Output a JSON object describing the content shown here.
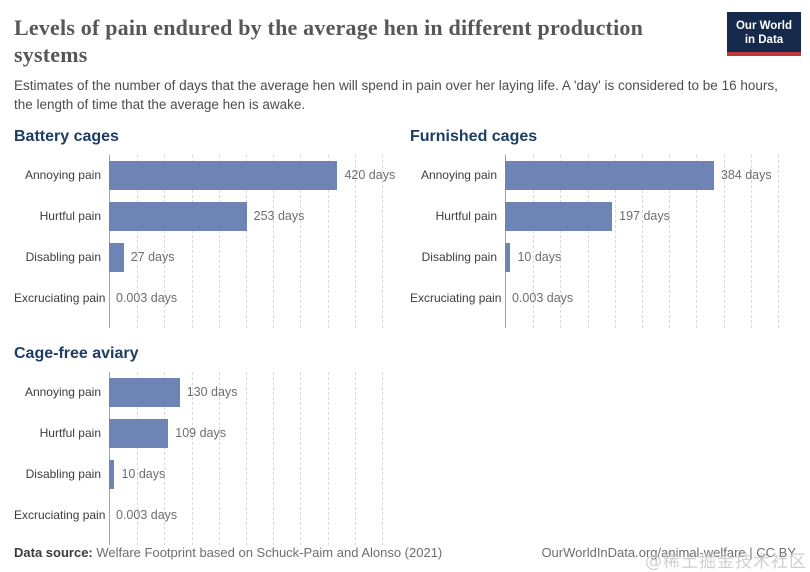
{
  "header": {
    "title": "Levels of pain endured by the average hen in different production systems",
    "subtitle": "Estimates of the number of days that the average hen will spend in pain over her laying life. A 'day' is considered to be 16 hours, the length of time that the average hen is awake.",
    "logo_line1": "Our World",
    "logo_line2": "in Data"
  },
  "chart_data": [
    {
      "type": "bar",
      "orientation": "horizontal",
      "title": "Battery cages",
      "categories": [
        "Annoying pain",
        "Hurtful pain",
        "Disabling pain",
        "Excruciating pain"
      ],
      "values": [
        420,
        253,
        27,
        0.003
      ],
      "value_labels": [
        "420 days",
        "253 days",
        "27 days",
        "0.003 days"
      ],
      "unit": "days",
      "xlim": [
        0,
        500
      ],
      "gridlines": "vertical-dashed-every-50-days",
      "legend": "none"
    },
    {
      "type": "bar",
      "orientation": "horizontal",
      "title": "Furnished cages",
      "categories": [
        "Annoying pain",
        "Hurtful pain",
        "Disabling pain",
        "Excruciating pain"
      ],
      "values": [
        384,
        197,
        10,
        0.003
      ],
      "value_labels": [
        "384 days",
        "197 days",
        "10 days",
        "0.003 days"
      ],
      "unit": "days",
      "xlim": [
        0,
        500
      ],
      "gridlines": "vertical-dashed-every-50-days",
      "legend": "none"
    },
    {
      "type": "bar",
      "orientation": "horizontal",
      "title": "Cage-free aviary",
      "categories": [
        "Annoying pain",
        "Hurtful pain",
        "Disabling pain",
        "Excruciating pain"
      ],
      "values": [
        130,
        109,
        10,
        0.003
      ],
      "value_labels": [
        "130 days",
        "109 days",
        "10 days",
        "0.003 days"
      ],
      "unit": "days",
      "xlim": [
        0,
        500
      ],
      "gridlines": "vertical-dashed-every-50-days",
      "legend": "none"
    }
  ],
  "footer": {
    "source_label": "Data source:",
    "source_text": " Welfare Footprint based on Schuck-Paim and Alonso (2021)",
    "attribution": "OurWorldInData.org/animal-welfare | CC BY"
  },
  "watermark": "@稀土掘金技术社区",
  "colors": {
    "bar": "#6d84b4",
    "panel_title": "#1d3d63",
    "logo_bg": "#14294b",
    "logo_accent": "#c0383e",
    "axis_line": "#a3a3a3",
    "gridline": "#d9d9d9"
  }
}
